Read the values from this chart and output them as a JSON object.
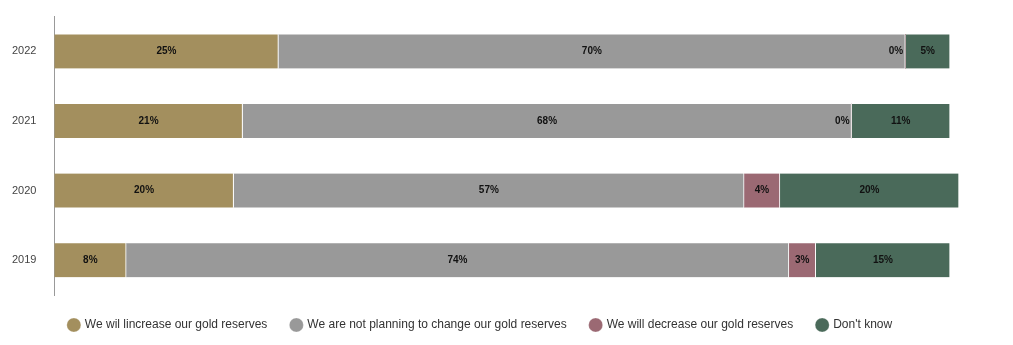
{
  "chart_data": {
    "type": "bar",
    "orientation": "horizontal",
    "stacked": true,
    "categories": [
      "2022",
      "2021",
      "2020",
      "2019"
    ],
    "series": [
      {
        "name": "We wil lincrease our gold reserves",
        "color": "#a38f5e",
        "values": [
          25,
          21,
          20,
          8
        ],
        "value_labels": [
          "25%",
          "21%",
          "20%",
          "8%"
        ]
      },
      {
        "name": "We are not planning to change our gold reserves",
        "color": "#999999",
        "values": [
          70,
          68,
          57,
          74
        ],
        "value_labels": [
          "70%",
          "68%",
          "57%",
          "74%"
        ]
      },
      {
        "name": "We will decrease our gold reserves",
        "color": "#9b6973",
        "values": [
          0,
          0,
          4,
          3
        ],
        "value_labels": [
          "0%",
          "0%",
          "4%",
          "3%"
        ]
      },
      {
        "name": "Don't know",
        "color": "#4a6a5a",
        "values": [
          5,
          11,
          20,
          15
        ],
        "value_labels": [
          "5%",
          "11%",
          "20%",
          "15%"
        ]
      }
    ],
    "legend": "bottom"
  }
}
